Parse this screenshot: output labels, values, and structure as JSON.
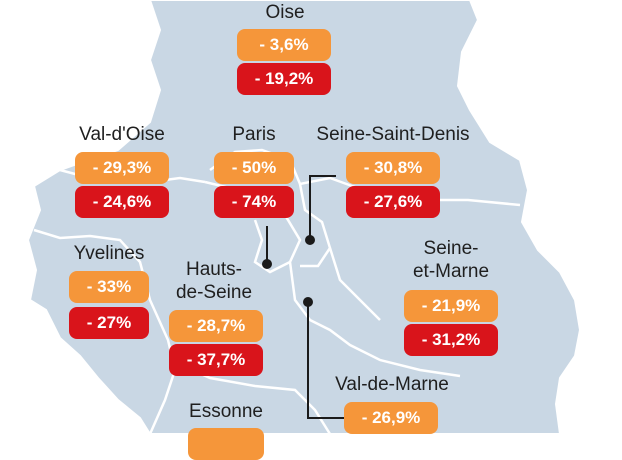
{
  "colors": {
    "map_fill": "#c9d7e4",
    "map_border": "#ffffff",
    "pill_primary": "#f5963a",
    "pill_secondary": "#d9141b",
    "leader": "#1a1a1a"
  },
  "regions": {
    "oise": {
      "name": "Oise",
      "primary": "- 3,6%",
      "secondary": "- 19,2%"
    },
    "val_d_oise": {
      "name": "Val-d'Oise",
      "primary": "- 29,3%",
      "secondary": "- 24,6%"
    },
    "paris": {
      "name": "Paris",
      "primary": "- 50%",
      "secondary": "- 74%"
    },
    "seine_saint_denis": {
      "name": "Seine-Saint-Denis",
      "primary": "- 30,8%",
      "secondary": "- 27,6%"
    },
    "yvelines": {
      "name": "Yvelines",
      "primary": "- 33%",
      "secondary": "- 27%"
    },
    "hauts_de_seine": {
      "name_line1": "Hauts-",
      "name_line2": "de-Seine",
      "primary": "- 28,7%",
      "secondary": "- 37,7%"
    },
    "seine_et_marne": {
      "name_line1": "Seine-",
      "name_line2": "et-Marne",
      "primary": "- 21,9%",
      "secondary": "- 31,2%"
    },
    "val_de_marne": {
      "name": "Val-de-Marne",
      "primary": "- 26,9%"
    },
    "essonne": {
      "name": "Essonne"
    }
  }
}
